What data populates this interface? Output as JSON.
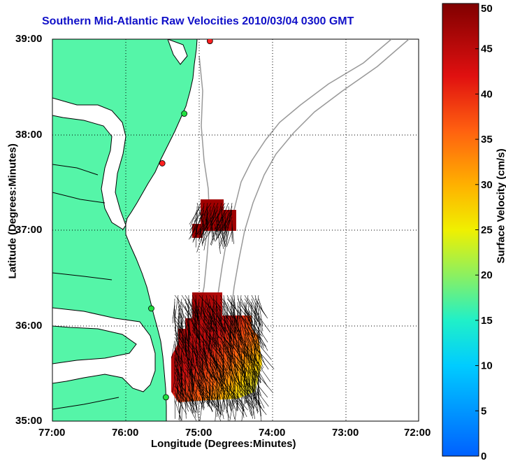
{
  "title": "Southern Mid-Atlantic Raw Velocities 2010/03/04 0300 GMT",
  "xlabel": "Longitude (Degrees:Minutes)",
  "ylabel": "Latitude (Degrees:Minutes)",
  "x_ticks": [
    "77:00",
    "76:00",
    "75:00",
    "74:00",
    "73:00",
    "72:00"
  ],
  "y_ticks": [
    "39:00",
    "38:00",
    "37:00",
    "36:00",
    "35:00"
  ],
  "colorbar": {
    "label": "Surface Velocity (cm/s)",
    "ticks": [
      "0",
      "5",
      "10",
      "15",
      "20",
      "25",
      "30",
      "35",
      "40",
      "45",
      "50"
    ],
    "min": 0,
    "max": 50
  },
  "colors": {
    "land": "#55f5a8",
    "coast": "#000000",
    "bathymetry": "#999999",
    "title": "#1010c8"
  },
  "chart_data": {
    "type": "heatmap",
    "title": "Southern Mid-Atlantic Raw Velocities 2010/03/04 0300 GMT",
    "xlabel": "Longitude (Degrees:Minutes)",
    "ylabel": "Latitude (Degrees:Minutes)",
    "xlim": [
      -77,
      -72
    ],
    "ylim": [
      35,
      39
    ],
    "colorbar_range": [
      0,
      50
    ],
    "units": "cm/s",
    "grid": true,
    "regions": [
      {
        "name": "northern patch",
        "lon_range": [
          -75.1,
          -74.5
        ],
        "lat_range": [
          36.8,
          37.3
        ],
        "velocity_range": [
          40,
          50
        ]
      },
      {
        "name": "southern patch",
        "lon_range": [
          -75.3,
          -74.2
        ],
        "lat_range": [
          35.2,
          36.35
        ],
        "velocity_range": [
          15,
          50
        ]
      }
    ],
    "stations": [
      {
        "lon": -74.85,
        "lat": 38.98,
        "color": "red"
      },
      {
        "lon": -75.2,
        "lat": 38.22,
        "color": "green"
      },
      {
        "lon": -75.5,
        "lat": 37.7,
        "color": "red"
      },
      {
        "lon": -75.65,
        "lat": 36.18,
        "color": "green"
      },
      {
        "lon": -75.45,
        "lat": 35.25,
        "color": "green"
      }
    ]
  }
}
